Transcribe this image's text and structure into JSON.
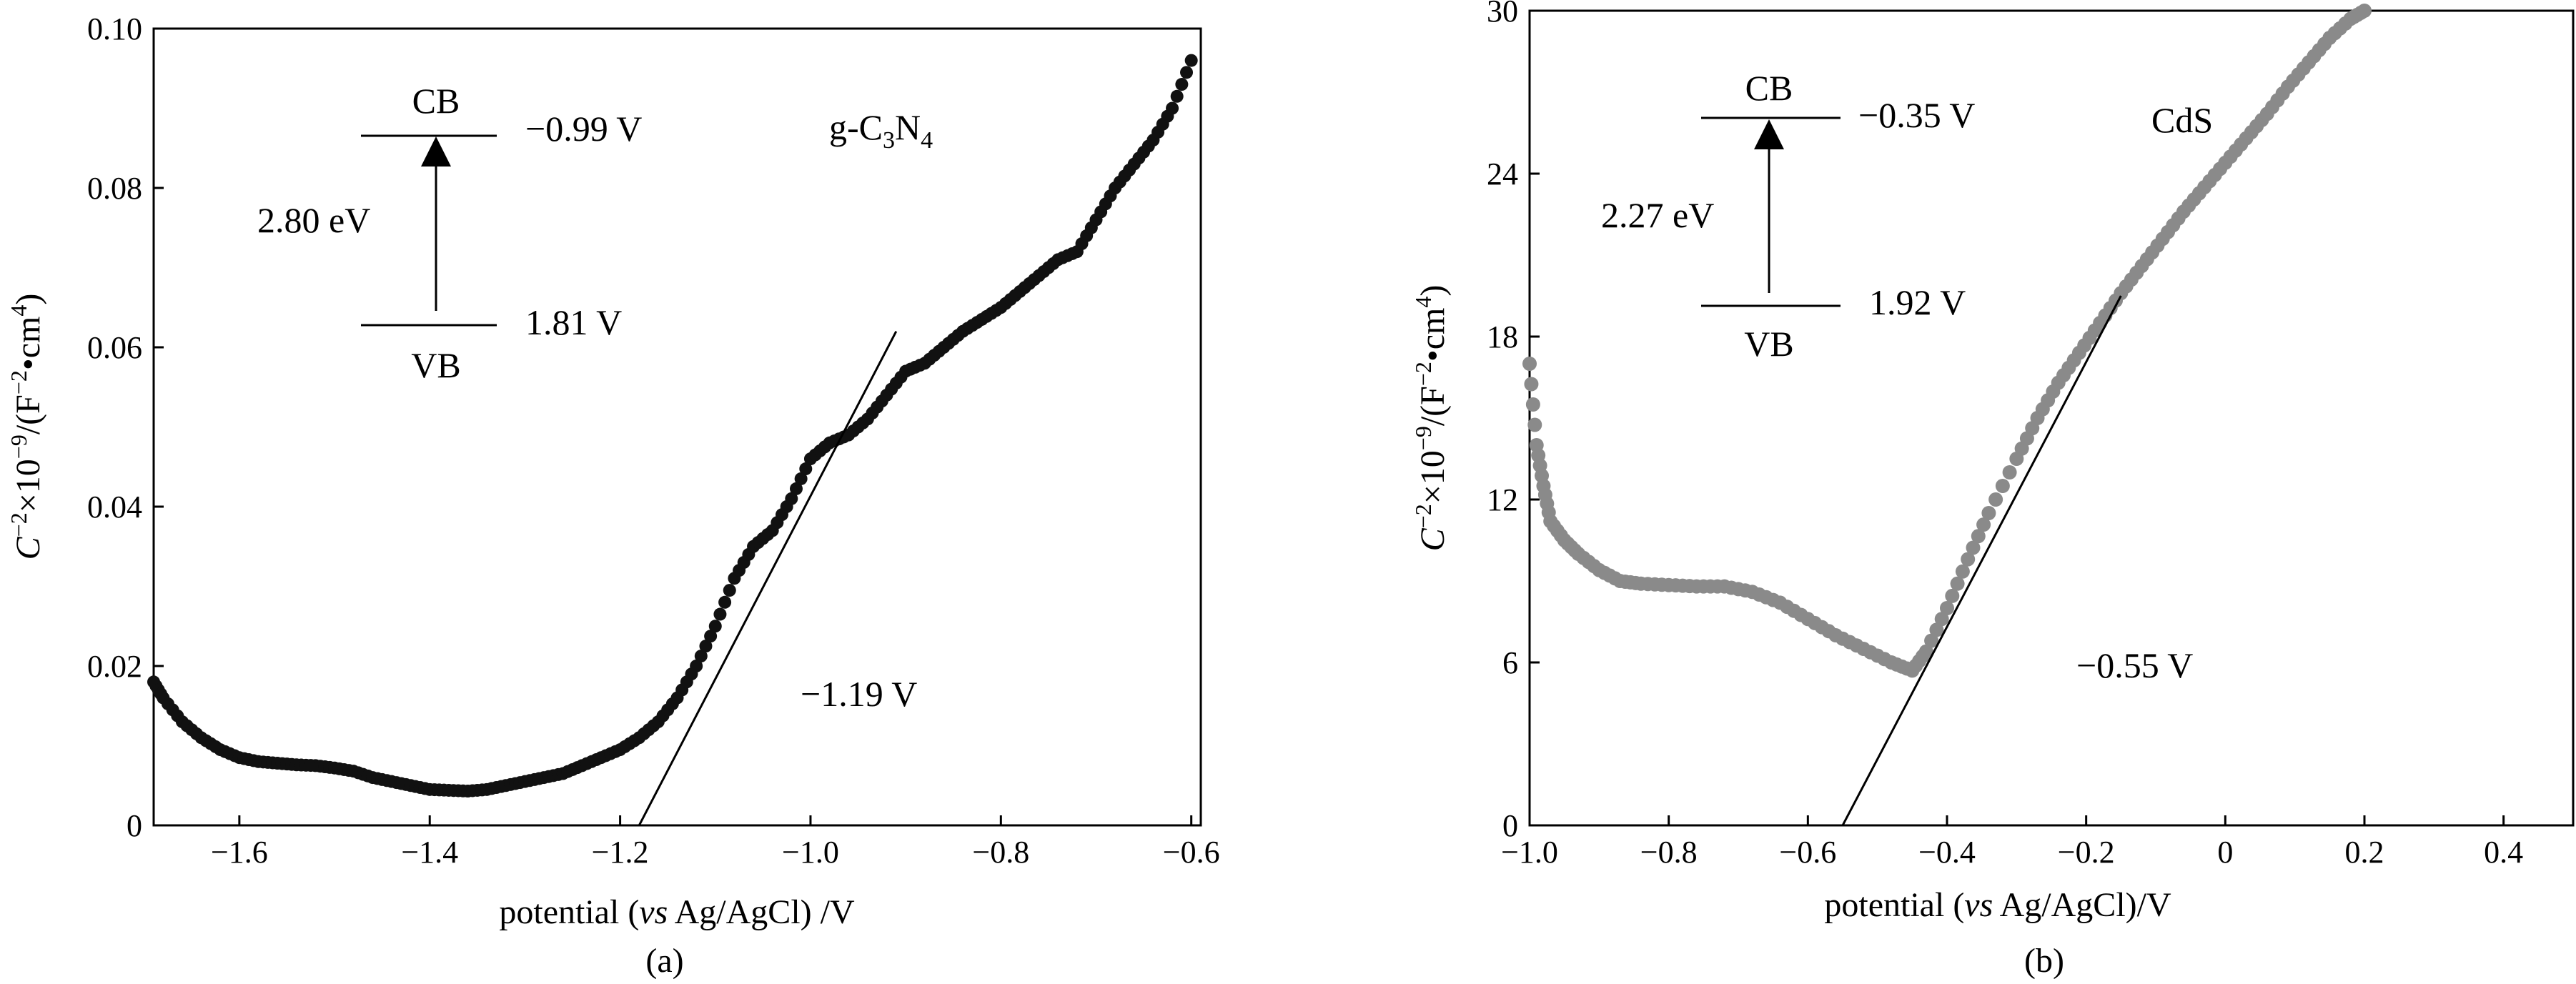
{
  "chart_data": [
    {
      "type": "scatter",
      "panel_label": "(a)",
      "material_label": "g-C3N4",
      "xlabel_parts": {
        "pre": "potential (",
        "italic": "vs",
        "post": " Ag/AgCl) /V"
      },
      "ylabel_parts": {
        "italic": "C",
        "sup1": "−2",
        "mid": "×10",
        "sup2": "−9",
        "unit_pre": "/(F",
        "sup3": "−2",
        "unit_mid": "•cm",
        "sup4": "4",
        "unit_post": ")"
      },
      "xlim": [
        -1.69,
        -0.59
      ],
      "ylim": [
        0,
        0.1
      ],
      "xticks": [
        -1.6,
        -1.4,
        -1.2,
        -1.0,
        -0.8,
        -0.6
      ],
      "xtick_labels": [
        "−1.6",
        "−1.4",
        "−1.2",
        "−1.0",
        "−0.8",
        "−0.6"
      ],
      "yticks": [
        0,
        0.02,
        0.04,
        0.06,
        0.08,
        0.1
      ],
      "ytick_labels": [
        "0",
        "0.02",
        "0.04",
        "0.06",
        "0.08",
        "0.10"
      ],
      "marker_color": "#111111",
      "series": [
        {
          "name": "g-C3N4",
          "x": [
            -1.69,
            -1.68,
            -1.66,
            -1.64,
            -1.62,
            -1.6,
            -1.58,
            -1.56,
            -1.54,
            -1.52,
            -1.5,
            -1.48,
            -1.46,
            -1.44,
            -1.42,
            -1.4,
            -1.38,
            -1.36,
            -1.34,
            -1.32,
            -1.3,
            -1.28,
            -1.26,
            -1.24,
            -1.22,
            -1.2,
            -1.18,
            -1.16,
            -1.14,
            -1.12,
            -1.1,
            -1.08,
            -1.06,
            -1.04,
            -1.02,
            -1.0,
            -0.98,
            -0.96,
            -0.94,
            -0.92,
            -0.9,
            -0.88,
            -0.86,
            -0.84,
            -0.82,
            -0.8,
            -0.78,
            -0.76,
            -0.74,
            -0.72,
            -0.7,
            -0.68,
            -0.66,
            -0.64,
            -0.62,
            -0.6
          ],
          "y": [
            0.018,
            0.016,
            0.013,
            0.011,
            0.0095,
            0.0085,
            0.008,
            0.0078,
            0.0076,
            0.0075,
            0.0072,
            0.0068,
            0.006,
            0.0055,
            0.005,
            0.0045,
            0.0044,
            0.0043,
            0.0045,
            0.005,
            0.0055,
            0.006,
            0.0065,
            0.0075,
            0.0085,
            0.0095,
            0.011,
            0.013,
            0.016,
            0.02,
            0.025,
            0.031,
            0.035,
            0.037,
            0.041,
            0.046,
            0.048,
            0.049,
            0.051,
            0.054,
            0.057,
            0.058,
            0.06,
            0.062,
            0.0635,
            0.065,
            0.067,
            0.069,
            0.071,
            0.072,
            0.076,
            0.08,
            0.083,
            0.086,
            0.09,
            0.096
          ]
        }
      ],
      "tangent_line": {
        "x": [
          -1.18,
          -0.91
        ],
        "y": [
          0,
          0.062
        ]
      },
      "tangent_label": "−1.19 V",
      "band": {
        "cb_label": "CB",
        "cb_value": "−0.99 V",
        "vb_label": "VB",
        "vb_value": "1.81 V",
        "gap_label": "2.80 eV"
      }
    },
    {
      "type": "scatter",
      "panel_label": "(b)",
      "material_label": "CdS",
      "xlabel_parts": {
        "pre": "potential (",
        "italic": "vs",
        "post": " Ag/AgCl)/V"
      },
      "ylabel_parts": {
        "italic": "C",
        "sup1": "−2",
        "mid": "×10",
        "sup2": "−9",
        "unit_pre": "/(F",
        "sup3": "−2",
        "unit_mid": "•cm",
        "sup4": "4",
        "unit_post": ")"
      },
      "xlim": [
        -1.0,
        0.5
      ],
      "ylim": [
        0,
        30
      ],
      "xticks": [
        -1.0,
        -0.8,
        -0.6,
        -0.4,
        -0.2,
        0,
        0.2,
        0.4
      ],
      "xtick_labels": [
        "−1.0",
        "−0.8",
        "−0.6",
        "−0.4",
        "−0.2",
        "0",
        "0.2",
        "0.4"
      ],
      "yticks": [
        0,
        6,
        12,
        18,
        24,
        30
      ],
      "ytick_labels": [
        "0",
        "6",
        "12",
        "18",
        "24",
        "30"
      ],
      "marker_color": "#8a8a8a",
      "series": [
        {
          "name": "CdS",
          "x": [
            -1.0,
            -0.99,
            -0.98,
            -0.97,
            -0.95,
            -0.93,
            -0.9,
            -0.87,
            -0.84,
            -0.8,
            -0.76,
            -0.72,
            -0.68,
            -0.64,
            -0.6,
            -0.56,
            -0.52,
            -0.48,
            -0.45,
            -0.43,
            -0.4,
            -0.37,
            -0.34,
            -0.3,
            -0.27,
            -0.24,
            -0.21,
            -0.18,
            -0.15,
            -0.12,
            -0.09,
            -0.06,
            -0.03,
            0.0,
            0.03,
            0.06,
            0.09,
            0.12,
            0.15,
            0.18,
            0.2
          ],
          "y": [
            17,
            14,
            12.5,
            11.2,
            10.5,
            10,
            9.4,
            9.0,
            8.9,
            8.85,
            8.8,
            8.8,
            8.6,
            8.2,
            7.6,
            7.0,
            6.5,
            6.0,
            5.7,
            6.4,
            8.0,
            9.8,
            11.5,
            13.5,
            15.0,
            16.3,
            17.4,
            18.5,
            19.6,
            20.6,
            21.6,
            22.6,
            23.5,
            24.4,
            25.3,
            26.2,
            27.2,
            28.1,
            29.0,
            29.7,
            30.0
          ]
        }
      ],
      "tangent_line": {
        "x": [
          -0.55,
          -0.15
        ],
        "y": [
          0,
          19.5
        ]
      },
      "tangent_label": "−0.55 V",
      "band": {
        "cb_label": "CB",
        "cb_value": "−0.35 V",
        "vb_label": "VB",
        "vb_value": "1.92 V",
        "gap_label": "2.27 eV"
      }
    }
  ]
}
